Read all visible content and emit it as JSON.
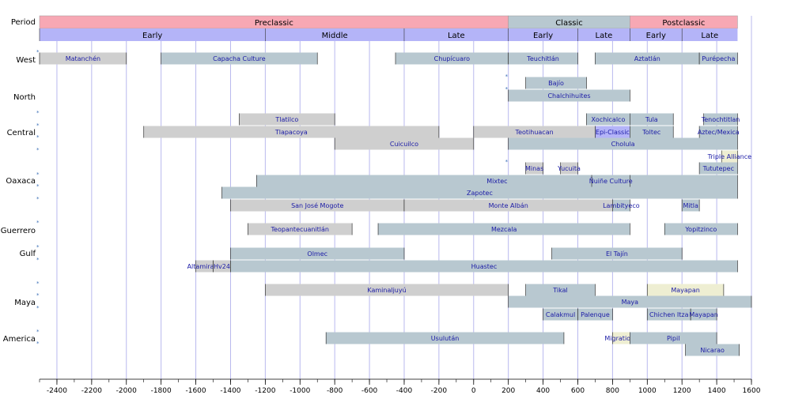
{
  "chart_data": {
    "type": "timeline",
    "xlim": [
      -2500,
      1600
    ],
    "xticks": [
      -2400,
      -2200,
      -2000,
      -1800,
      -1600,
      -1400,
      -1200,
      -1000,
      -800,
      -600,
      -400,
      -200,
      0,
      200,
      400,
      600,
      800,
      1000,
      1200,
      1400,
      1600
    ],
    "colors": {
      "grid": "#b8b8ee",
      "preclassic": "#f7a8b4",
      "classic": "#b8c8d0",
      "postclassic": "#f7a8b4",
      "subperiod": "#b4b4f8",
      "bar_blue": "#b8c8d0",
      "bar_grey": "#cfcfcf",
      "bar_cream": "#eeeed2",
      "bar_lavender": "#b4b4f8",
      "label": "#1a1aa6",
      "marker": "#3b6fb6"
    },
    "period_label": "Period",
    "periods": [
      {
        "name": "Preclassic",
        "start": -2500,
        "end": 200,
        "color": "preclassic"
      },
      {
        "name": "Classic",
        "start": 200,
        "end": 900,
        "color": "classic"
      },
      {
        "name": "Postclassic",
        "start": 900,
        "end": 1520,
        "color": "postclassic"
      }
    ],
    "subperiods": [
      {
        "name": "Early",
        "start": -2500,
        "end": -400
      },
      {
        "name": "Middle",
        "start": -1200,
        "end": -400
      },
      {
        "name": "Late",
        "start": -400,
        "end": 200
      },
      {
        "name": "Early",
        "start": 200,
        "end": 600
      },
      {
        "name": "Late",
        "start": 600,
        "end": 900
      },
      {
        "name": "Early",
        "start": 900,
        "end": 1200
      },
      {
        "name": "Late",
        "start": 1200,
        "end": 1520
      }
    ],
    "rows": [
      {
        "name": "West",
        "row": 0
      },
      {
        "name": "North",
        "row": 1
      },
      {
        "name": "Central",
        "row": 2
      },
      {
        "name": "Oaxaca",
        "row": 3
      },
      {
        "name": "Guerrero",
        "row": 4
      },
      {
        "name": "Gulf",
        "row": 5
      },
      {
        "name": "Maya",
        "row": 6
      },
      {
        "name": "Central America",
        "row": 7
      }
    ],
    "bars": [
      {
        "label": "Matanchén",
        "start": -2500,
        "end": -2000,
        "y": 74,
        "color": "bar_grey"
      },
      {
        "label": "Capacha Culture",
        "start": -1800,
        "end": -900,
        "y": 74,
        "color": "bar_blue"
      },
      {
        "label": "Chupícuaro",
        "start": -450,
        "end": 200,
        "y": 74,
        "color": "bar_blue"
      },
      {
        "label": "Teuchitlán",
        "start": 200,
        "end": 600,
        "y": 74,
        "color": "bar_blue"
      },
      {
        "label": "Aztatlán",
        "start": 700,
        "end": 1300,
        "y": 74,
        "color": "bar_blue"
      },
      {
        "label": "Purépecha",
        "start": 1300,
        "end": 1520,
        "y": 74,
        "color": "bar_blue"
      },
      {
        "label": "Bajío",
        "start": 300,
        "end": 650,
        "y": 105,
        "color": "bar_blue"
      },
      {
        "label": "Chalchihuites",
        "start": 200,
        "end": 900,
        "y": 121,
        "color": "bar_blue"
      },
      {
        "label": "Tlatilco",
        "start": -1350,
        "end": -800,
        "y": 151,
        "color": "bar_grey"
      },
      {
        "label": "Xochicalco",
        "start": 650,
        "end": 900,
        "y": 151,
        "color": "bar_blue"
      },
      {
        "label": "Tula",
        "start": 900,
        "end": 1150,
        "y": 151,
        "color": "bar_blue"
      },
      {
        "label": "Tenochtitlan",
        "start": 1325,
        "end": 1520,
        "y": 151,
        "color": "bar_blue"
      },
      {
        "label": "Tlapacoya",
        "start": -1900,
        "end": -200,
        "y": 167,
        "color": "bar_grey"
      },
      {
        "label": "Teotihuacan",
        "start": 0,
        "end": 700,
        "y": 167,
        "color": "bar_grey"
      },
      {
        "label": "Epi-Classic",
        "start": 700,
        "end": 900,
        "y": 167,
        "color": "bar_lavender"
      },
      {
        "label": "Toltec",
        "start": 900,
        "end": 1150,
        "y": 167,
        "color": "bar_blue"
      },
      {
        "label": "Aztec/Mexica",
        "start": 1300,
        "end": 1520,
        "y": 167,
        "color": "bar_blue"
      },
      {
        "label": "Cuicuilco",
        "start": -800,
        "end": 0,
        "y": 182,
        "color": "bar_grey"
      },
      {
        "label": "Cholula",
        "start": 200,
        "end": 1520,
        "y": 182,
        "color": "bar_blue"
      },
      {
        "label": "Triple Alliance",
        "start": 1428,
        "end": 1520,
        "y": 198,
        "color": "bar_cream"
      },
      {
        "label": "Minas",
        "start": 300,
        "end": 400,
        "y": 213,
        "color": "bar_grey"
      },
      {
        "label": "Yucuita",
        "start": 500,
        "end": 600,
        "y": 213,
        "color": "bar_grey"
      },
      {
        "label": "Tututepec",
        "start": 1300,
        "end": 1520,
        "y": 213,
        "color": "bar_blue"
      },
      {
        "label": "Mixtec",
        "start": -1250,
        "end": 1520,
        "y": 229,
        "color": "bar_blue"
      },
      {
        "label": "Ñuiñe Culture",
        "start": 680,
        "end": 900,
        "y": 229,
        "color": "bar_blue"
      },
      {
        "label": "Zapotec",
        "start": -1450,
        "end": 1520,
        "y": 244,
        "color": "bar_blue"
      },
      {
        "label": "San José Mogote",
        "start": -1400,
        "end": -400,
        "y": 260,
        "color": "bar_grey"
      },
      {
        "label": "Monte Albán",
        "start": -400,
        "end": 800,
        "y": 260,
        "color": "bar_grey"
      },
      {
        "label": "Lambityeco",
        "start": 800,
        "end": 900,
        "y": 260,
        "color": "bar_blue"
      },
      {
        "label": "Mitla",
        "start": 1200,
        "end": 1300,
        "y": 260,
        "color": "bar_blue"
      },
      {
        "label": "Teopantecuanitlán",
        "start": -1300,
        "end": -700,
        "y": 290,
        "color": "bar_grey"
      },
      {
        "label": "Mezcala",
        "start": -550,
        "end": 900,
        "y": 290,
        "color": "bar_blue"
      },
      {
        "label": "Yopitzinco",
        "start": 1100,
        "end": 1520,
        "y": 290,
        "color": "bar_blue"
      },
      {
        "label": "Olmec",
        "start": -1400,
        "end": -400,
        "y": 321,
        "color": "bar_blue"
      },
      {
        "label": "El Tajín",
        "start": 450,
        "end": 1200,
        "y": 321,
        "color": "bar_blue"
      },
      {
        "label": "Altamirano",
        "start": -1600,
        "end": -1500,
        "y": 337,
        "color": "bar_grey"
      },
      {
        "label": "Hv24",
        "start": -1500,
        "end": -1400,
        "y": 337,
        "color": "bar_grey"
      },
      {
        "label": "Huastec",
        "start": -1400,
        "end": 1520,
        "y": 337,
        "color": "bar_blue"
      },
      {
        "label": "Kaminaljuyú",
        "start": -1200,
        "end": 200,
        "y": 367,
        "color": "bar_grey"
      },
      {
        "label": "Tikal",
        "start": 300,
        "end": 700,
        "y": 367,
        "color": "bar_blue"
      },
      {
        "label": "Mayapan",
        "start": 1000,
        "end": 1440,
        "y": 367,
        "color": "bar_cream"
      },
      {
        "label": "Maya",
        "start": 200,
        "end": 1600,
        "y": 382,
        "color": "bar_blue"
      },
      {
        "label": "Calakmul",
        "start": 400,
        "end": 600,
        "y": 398,
        "color": "bar_blue"
      },
      {
        "label": "Palenque",
        "start": 600,
        "end": 800,
        "y": 398,
        "color": "bar_blue"
      },
      {
        "label": "Chichen Itza",
        "start": 1000,
        "end": 1250,
        "y": 398,
        "color": "bar_blue"
      },
      {
        "label": "Mayapan",
        "start": 1250,
        "end": 1400,
        "y": 398,
        "color": "bar_blue"
      },
      {
        "label": "Usulután",
        "start": -850,
        "end": 520,
        "y": 428,
        "color": "bar_blue"
      },
      {
        "label": "Migrations",
        "start": 800,
        "end": 900,
        "y": 428,
        "color": "bar_cream"
      },
      {
        "label": "Pipil",
        "start": 900,
        "end": 1400,
        "y": 428,
        "color": "bar_blue"
      },
      {
        "label": "Nicarao",
        "start": 1220,
        "end": 1530,
        "y": 443,
        "color": "bar_blue"
      }
    ],
    "markers": [
      {
        "x": -2500,
        "y": 65
      },
      {
        "x": 200,
        "y": 96
      },
      {
        "x": 200,
        "y": 112
      },
      {
        "x": -2500,
        "y": 142
      },
      {
        "x": -2500,
        "y": 158
      },
      {
        "x": -2500,
        "y": 173
      },
      {
        "x": -2500,
        "y": 189
      },
      {
        "x": 200,
        "y": 204
      },
      {
        "x": -2500,
        "y": 220
      },
      {
        "x": -2500,
        "y": 235
      },
      {
        "x": -2500,
        "y": 251
      },
      {
        "x": -2500,
        "y": 281
      },
      {
        "x": -2500,
        "y": 312
      },
      {
        "x": -2500,
        "y": 328
      },
      {
        "x": -2500,
        "y": 358
      },
      {
        "x": -2500,
        "y": 373
      },
      {
        "x": -2500,
        "y": 389
      },
      {
        "x": -2500,
        "y": 419
      },
      {
        "x": -2500,
        "y": 434
      }
    ]
  }
}
